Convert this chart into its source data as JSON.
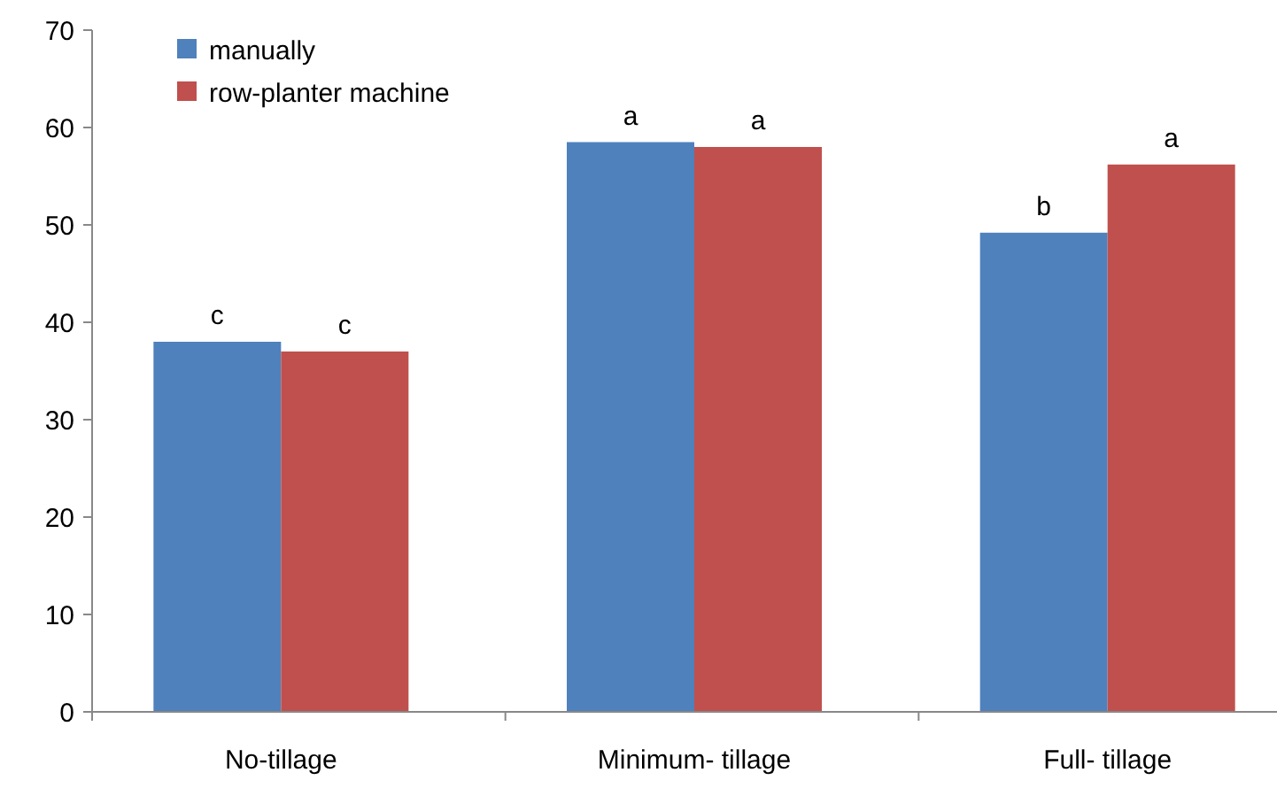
{
  "chart_data": {
    "type": "bar",
    "categories": [
      "No-tillage",
      "Minimum- tillage",
      "Full- tillage"
    ],
    "series": [
      {
        "name": "manually",
        "color": "#4f81bd",
        "values": [
          38,
          58.5,
          49.2
        ],
        "value_labels": [
          "c",
          "a",
          "b"
        ]
      },
      {
        "name": "row-planter machine",
        "color": "#c0504d",
        "values": [
          37,
          58,
          56.2
        ],
        "value_labels": [
          "c",
          "a",
          "a"
        ]
      }
    ],
    "ylim": [
      0,
      70
    ],
    "yticks": [
      0,
      10,
      20,
      30,
      40,
      50,
      60,
      70
    ],
    "grid": false,
    "legend": "top left"
  }
}
